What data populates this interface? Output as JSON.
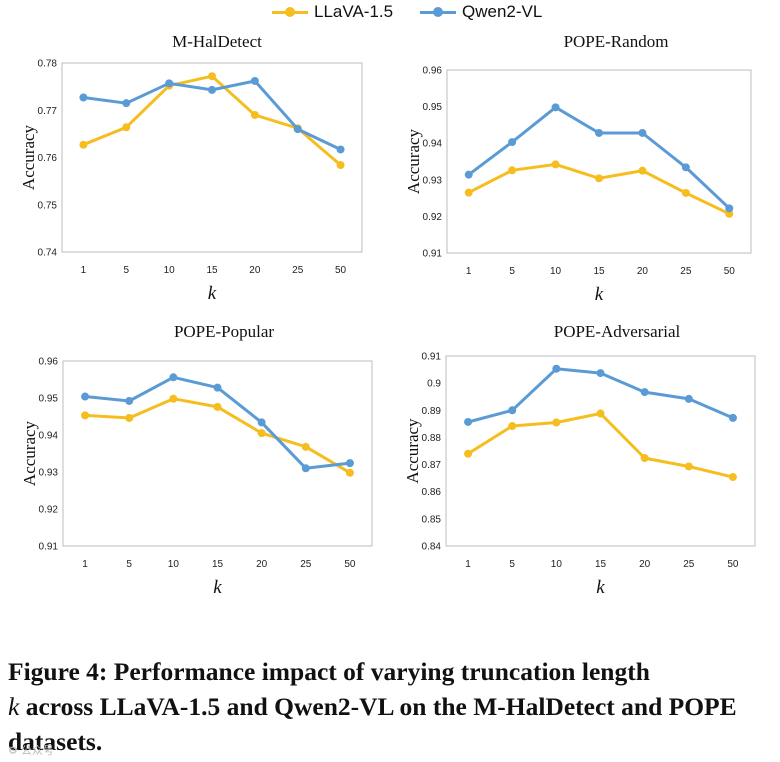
{
  "legend": [
    {
      "name": "LLaVA-1.5",
      "color": "#F5BE1E"
    },
    {
      "name": "Qwen2-VL",
      "color": "#5B9BD5"
    }
  ],
  "chart_data": [
    {
      "type": "line",
      "title": "M-HalDetect",
      "xlabel": "k",
      "ylabel": "Accuracy",
      "categories": [
        "1",
        "5",
        "10",
        "15",
        "20",
        "25",
        "50"
      ],
      "ylim": [
        0.74,
        0.78
      ],
      "yticks": [
        "0.74",
        "0.75",
        "0.76",
        "0.77",
        "0.78"
      ],
      "series": [
        {
          "name": "LLaVA-1.5",
          "values": [
            0.7627,
            0.7664,
            0.7752,
            0.7772,
            0.769,
            0.7662,
            0.7584
          ]
        },
        {
          "name": "Qwen2-VL",
          "values": [
            0.7727,
            0.7715,
            0.7757,
            0.7743,
            0.7762,
            0.766,
            0.7617
          ]
        }
      ]
    },
    {
      "type": "line",
      "title": "POPE-Random",
      "xlabel": "k",
      "ylabel": "Accuracy",
      "categories": [
        "1",
        "5",
        "10",
        "15",
        "20",
        "25",
        "50"
      ],
      "ylim": [
        0.91,
        0.96
      ],
      "yticks": [
        "0.91",
        "0.92",
        "0.93",
        "0.94",
        "0.95",
        "0.96"
      ],
      "series": [
        {
          "name": "LLaVA-1.5",
          "values": [
            0.9265,
            0.9326,
            0.9342,
            0.9304,
            0.9325,
            0.9264,
            0.9207
          ]
        },
        {
          "name": "Qwen2-VL",
          "values": [
            0.9314,
            0.9403,
            0.9498,
            0.9428,
            0.9428,
            0.9334,
            0.9222
          ]
        }
      ]
    },
    {
      "type": "line",
      "title": "POPE-Popular",
      "xlabel": "k",
      "ylabel": "Accuracy",
      "categories": [
        "1",
        "5",
        "10",
        "15",
        "20",
        "25",
        "50"
      ],
      "ylim": [
        0.91,
        0.96
      ],
      "yticks": [
        "0.91",
        "0.92",
        "0.93",
        "0.94",
        "0.95",
        "0.96"
      ],
      "series": [
        {
          "name": "LLaVA-1.5",
          "values": [
            0.9453,
            0.9446,
            0.9498,
            0.9476,
            0.9405,
            0.9368,
            0.9298
          ]
        },
        {
          "name": "Qwen2-VL",
          "values": [
            0.9504,
            0.9492,
            0.9556,
            0.9528,
            0.9434,
            0.931,
            0.9324
          ]
        }
      ]
    },
    {
      "type": "line",
      "title": "POPE-Adversarial",
      "xlabel": "k",
      "ylabel": "Accuracy",
      "categories": [
        "1",
        "5",
        "10",
        "15",
        "20",
        "25",
        "50"
      ],
      "ylim": [
        0.84,
        0.91
      ],
      "yticks": [
        "0.84",
        "0.85",
        "0.86",
        "0.87",
        "0.88",
        "0.89",
        "0.9",
        "0.91"
      ],
      "series": [
        {
          "name": "LLaVA-1.5",
          "values": [
            0.874,
            0.8842,
            0.8855,
            0.8888,
            0.8724,
            0.8693,
            0.8654
          ]
        },
        {
          "name": "Qwen2-VL",
          "values": [
            0.8857,
            0.89,
            0.9053,
            0.9037,
            0.8967,
            0.8942,
            0.8872
          ]
        }
      ]
    }
  ],
  "caption": {
    "lead": "Figure 4: Performance impact of varying truncation length",
    "k": "k",
    "rest": "across LLaVA-1.5 and Qwen2-VL on the M-HalDetect and POPE datasets."
  },
  "watermark": "⚙ 公众号"
}
